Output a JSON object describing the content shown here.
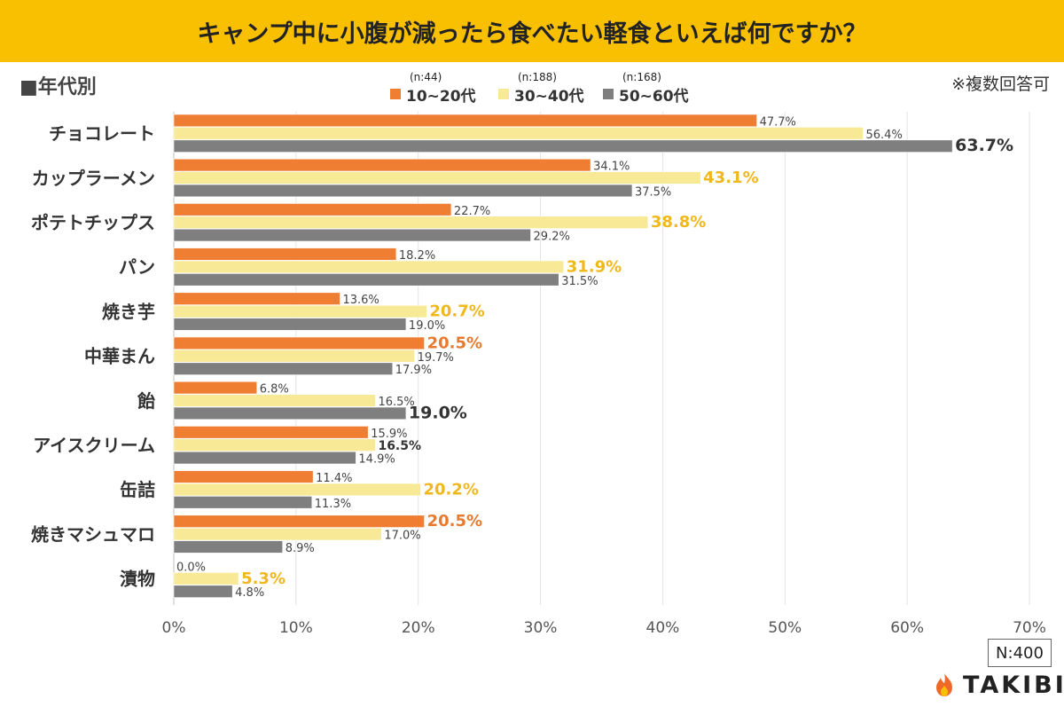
{
  "header": {
    "title": "キャンプ中に小腹が減ったら食べたい軽食といえば何ですか？"
  },
  "group_label": "■年代別",
  "note": "※複数回答可",
  "sample_label": "N:400",
  "brand": {
    "name": "TAKIBI"
  },
  "colors": {
    "title_bg": "#f8c000",
    "series_10_20": "#ef7e32",
    "series_30_40": "#f7e996",
    "series_50_60": "#7f7f7f",
    "highlight_yellow": "#f0b81c",
    "highlight_orange": "#e87a30",
    "highlight_dark": "#333333"
  },
  "chart_data": {
    "type": "bar",
    "orientation": "horizontal",
    "categories": [
      "チョコレート",
      "カップラーメン",
      "ポテトチップス",
      "パン",
      "焼き芋",
      "中華まん",
      "飴",
      "アイスクリーム",
      "缶詰",
      "焼きマシュマロ",
      "漬物"
    ],
    "series": [
      {
        "name": "10~20代",
        "n": "(n:44)",
        "values": [
          47.7,
          34.1,
          22.7,
          18.2,
          13.6,
          20.5,
          6.8,
          15.9,
          11.4,
          20.5,
          0.0
        ]
      },
      {
        "name": "30~40代",
        "n": "(n:188)",
        "values": [
          56.4,
          43.1,
          38.8,
          31.9,
          20.7,
          19.7,
          16.5,
          16.5,
          20.2,
          17.0,
          5.3
        ]
      },
      {
        "name": "50~60代",
        "n": "(n:168)",
        "values": [
          63.7,
          37.5,
          29.2,
          31.5,
          19.0,
          17.9,
          19.0,
          14.9,
          11.3,
          8.9,
          4.8
        ]
      }
    ],
    "highlights": [
      {
        "category": 0,
        "series": 2,
        "style": "dark"
      },
      {
        "category": 1,
        "series": 1,
        "style": "yellow"
      },
      {
        "category": 2,
        "series": 1,
        "style": "yellow"
      },
      {
        "category": 3,
        "series": 1,
        "style": "yellow"
      },
      {
        "category": 4,
        "series": 1,
        "style": "yellow"
      },
      {
        "category": 5,
        "series": 0,
        "style": "orange"
      },
      {
        "category": 6,
        "series": 2,
        "style": "dark"
      },
      {
        "category": 7,
        "series": 1,
        "style": "dark-small"
      },
      {
        "category": 8,
        "series": 1,
        "style": "yellow"
      },
      {
        "category": 9,
        "series": 0,
        "style": "orange"
      },
      {
        "category": 10,
        "series": 1,
        "style": "yellow"
      }
    ],
    "xlim": [
      0,
      70
    ],
    "xticks": [
      "0%",
      "10%",
      "20%",
      "30%",
      "40%",
      "50%",
      "60%",
      "70%"
    ],
    "grid": true,
    "legend_position": "top"
  }
}
